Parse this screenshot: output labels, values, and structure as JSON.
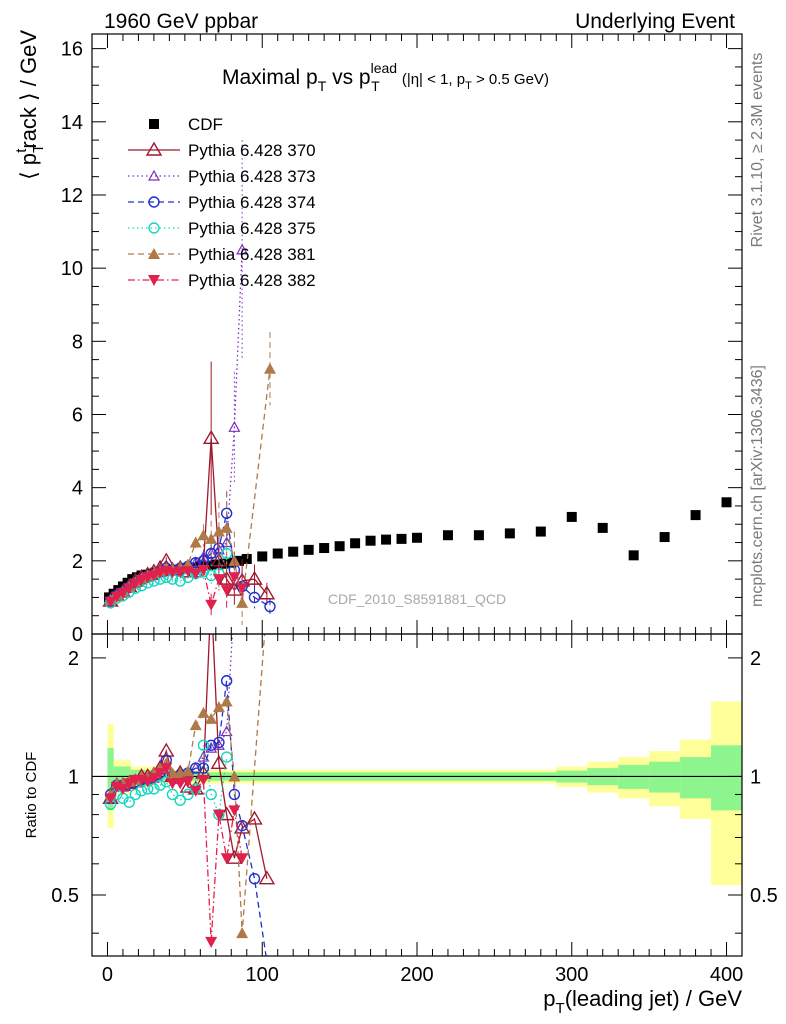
{
  "header": {
    "left": "1960 GeV ppbar",
    "right": "Underlying Event"
  },
  "side_labels": {
    "rivet": "Rivet 3.1.10, ≥ 2.3M events",
    "mcplots": "mcplots.cern.ch [arXiv:1306.3436]"
  },
  "watermark": "CDF_2010_S8591881_QCD",
  "chart_data": {
    "type": "scatter",
    "title": {
      "main": "Maximal p",
      "sub1": "T",
      "vs": " vs p",
      "sup": "lead",
      "sub2": "T",
      "tail1": " (|η| < 1, p",
      "sub3": "T",
      "tail2": " > 0.5 GeV)"
    },
    "ylabel": "⟨ p",
    "ylabel_sub": "T",
    "ylabel_sup": "t",
    "ylabel_tail": "rack ⟩ / GeV",
    "xlabel": "p",
    "xlabel_sub": "T",
    "xlabel_tail": "(leading jet) / GeV",
    "ratio_ylabel": "Ratio to CDF",
    "xlim": [
      -10,
      410
    ],
    "ylim": [
      0,
      16.4
    ],
    "ratio_ylim": [
      0.35,
      2.3
    ],
    "xticks": [
      0,
      100,
      200,
      300,
      400
    ],
    "xtick_labels": [
      "0",
      "100",
      "200",
      "300",
      "400"
    ],
    "yticks": [
      0,
      2,
      4,
      6,
      8,
      10,
      12,
      14,
      16
    ],
    "ytick_labels": [
      "0",
      "2",
      "4",
      "6",
      "8",
      "10",
      "12",
      "14",
      "16"
    ],
    "ratio_yticks": [
      0.5,
      1,
      2
    ],
    "ratio_ytick_labels": [
      "0.5",
      "1",
      "2"
    ],
    "legend_position": "top-left",
    "series": [
      {
        "name": "CDF",
        "style": "data",
        "color": "#000000",
        "x": [
          1,
          4,
          7,
          10,
          13,
          16,
          19,
          22,
          25,
          28,
          31,
          34,
          37,
          40,
          45,
          50,
          55,
          60,
          65,
          70,
          75,
          80,
          85,
          90,
          100,
          110,
          120,
          130,
          140,
          150,
          160,
          170,
          180,
          190,
          200,
          220,
          240,
          260,
          280,
          300,
          320,
          340,
          360,
          380,
          400
        ],
        "y": [
          1.0,
          1.1,
          1.2,
          1.3,
          1.4,
          1.5,
          1.55,
          1.6,
          1.62,
          1.65,
          1.68,
          1.7,
          1.72,
          1.74,
          1.76,
          1.8,
          1.82,
          1.85,
          1.87,
          1.9,
          1.92,
          1.95,
          2.0,
          2.05,
          2.12,
          2.2,
          2.25,
          2.3,
          2.35,
          2.4,
          2.48,
          2.55,
          2.58,
          2.6,
          2.63,
          2.7,
          2.7,
          2.75,
          2.8,
          3.2,
          2.9,
          2.15,
          2.65,
          3.25,
          3.6
        ]
      },
      {
        "name": "Pythia 6.428 370",
        "style": "solid",
        "marker": "triangle-open",
        "color": "#a0182e",
        "x": [
          2,
          6,
          10,
          14,
          18,
          22,
          26,
          30,
          34,
          38,
          42,
          47,
          52,
          57,
          62,
          67,
          72,
          77,
          82,
          87,
          95,
          103
        ],
        "y": [
          0.9,
          1.05,
          1.15,
          1.3,
          1.45,
          1.55,
          1.62,
          1.7,
          1.8,
          2.0,
          1.75,
          1.8,
          1.7,
          1.7,
          1.9,
          5.35,
          2.0,
          1.5,
          1.2,
          1.45,
          1.5,
          1.1
        ],
        "yerr": [
          0.05,
          0.05,
          0.05,
          0.06,
          0.06,
          0.06,
          0.07,
          0.07,
          0.08,
          0.1,
          0.1,
          0.12,
          0.15,
          0.2,
          0.3,
          2.1,
          0.5,
          0.5,
          0.4,
          0.6,
          0.4,
          0.3
        ],
        "ratio": [
          0.88,
          0.95,
          0.95,
          0.96,
          0.97,
          1.0,
          1.0,
          1.01,
          1.05,
          1.16,
          1.0,
          1.02,
          0.94,
          0.93,
          1.02,
          2.9,
          1.08,
          0.8,
          0.62,
          0.74,
          0.78,
          0.55
        ]
      },
      {
        "name": "Pythia 6.428 373",
        "style": "dotted",
        "marker": "triangle-open-small",
        "color": "#7b2fbe",
        "x": [
          2,
          6,
          10,
          14,
          18,
          22,
          26,
          30,
          34,
          38,
          42,
          47,
          52,
          57,
          62,
          67,
          72,
          77,
          82,
          87
        ],
        "y": [
          0.88,
          1.02,
          1.12,
          1.25,
          1.38,
          1.48,
          1.55,
          1.6,
          1.68,
          1.75,
          1.72,
          1.8,
          1.85,
          1.95,
          2.1,
          2.2,
          2.3,
          2.5,
          5.65,
          10.5
        ],
        "yerr": [
          0.04,
          0.04,
          0.05,
          0.05,
          0.05,
          0.06,
          0.06,
          0.07,
          0.07,
          0.08,
          0.09,
          0.1,
          0.12,
          0.15,
          0.2,
          0.3,
          0.4,
          0.6,
          1.5,
          3.0
        ],
        "ratio": [
          0.88,
          0.95,
          0.94,
          0.96,
          0.98,
          0.98,
          0.98,
          0.99,
          1.02,
          1.05,
          1.0,
          1.02,
          1.02,
          1.05,
          1.12,
          1.18,
          1.2,
          1.3,
          2.8,
          5.0
        ]
      },
      {
        "name": "Pythia 6.428 374",
        "style": "dashed",
        "marker": "circle-open",
        "color": "#1f2fd0",
        "x": [
          2,
          6,
          10,
          14,
          18,
          22,
          26,
          30,
          34,
          38,
          42,
          47,
          52,
          57,
          62,
          67,
          72,
          77,
          82,
          87,
          95,
          105
        ],
        "y": [
          0.9,
          1.05,
          1.15,
          1.28,
          1.4,
          1.5,
          1.58,
          1.62,
          1.7,
          1.8,
          1.75,
          1.8,
          1.85,
          1.95,
          2.0,
          2.2,
          2.35,
          3.3,
          1.75,
          1.3,
          1.0,
          0.75
        ],
        "yerr": [
          0.04,
          0.04,
          0.05,
          0.05,
          0.05,
          0.06,
          0.06,
          0.07,
          0.07,
          0.08,
          0.09,
          0.1,
          0.12,
          0.15,
          0.2,
          0.3,
          0.4,
          0.6,
          0.5,
          0.4,
          0.3,
          0.2
        ],
        "ratio": [
          0.9,
          0.95,
          0.95,
          0.96,
          0.97,
          0.98,
          0.98,
          1.0,
          1.02,
          1.1,
          1.0,
          1.01,
          1.02,
          1.05,
          1.05,
          1.2,
          1.22,
          1.75,
          0.9,
          0.75,
          0.55,
          0.3
        ]
      },
      {
        "name": "Pythia 6.428 375",
        "style": "dotted",
        "marker": "circle-open",
        "color": "#17d6c0",
        "x": [
          2,
          6,
          10,
          14,
          18,
          22,
          26,
          30,
          34,
          38,
          42,
          47,
          52,
          57,
          62,
          67,
          72,
          77
        ],
        "y": [
          0.85,
          0.98,
          1.05,
          1.15,
          1.25,
          1.32,
          1.4,
          1.45,
          1.5,
          1.55,
          1.5,
          1.45,
          1.55,
          1.65,
          1.7,
          1.6,
          1.65,
          2.2
        ],
        "yerr": [
          0.04,
          0.04,
          0.05,
          0.05,
          0.05,
          0.06,
          0.06,
          0.07,
          0.07,
          0.08,
          0.09,
          0.1,
          0.12,
          0.15,
          0.2,
          0.3,
          0.4,
          0.6
        ],
        "ratio": [
          0.85,
          0.9,
          0.88,
          0.86,
          0.9,
          0.92,
          0.93,
          0.93,
          0.95,
          0.97,
          0.9,
          0.87,
          0.9,
          0.93,
          1.2,
          0.9,
          0.8,
          1.12
        ]
      },
      {
        "name": "Pythia 6.428 381",
        "style": "dashed",
        "marker": "triangle-filled",
        "color": "#b07a48",
        "x": [
          2,
          6,
          10,
          14,
          18,
          22,
          26,
          30,
          34,
          38,
          42,
          47,
          52,
          57,
          62,
          67,
          72,
          77,
          82,
          87,
          105
        ],
        "y": [
          0.92,
          1.05,
          1.15,
          1.3,
          1.42,
          1.52,
          1.6,
          1.66,
          1.72,
          1.8,
          1.78,
          1.82,
          1.9,
          2.5,
          2.7,
          2.6,
          2.8,
          2.9,
          2.0,
          0.85,
          7.25
        ],
        "yerr": [
          0.04,
          0.04,
          0.05,
          0.05,
          0.05,
          0.06,
          0.06,
          0.07,
          0.07,
          0.08,
          0.09,
          0.1,
          0.12,
          0.15,
          0.3,
          0.5,
          0.8,
          1.0,
          0.8,
          0.6,
          1.0
        ],
        "ratio": [
          0.9,
          0.96,
          0.96,
          0.97,
          0.98,
          1.0,
          1.0,
          1.02,
          1.05,
          1.08,
          1.02,
          1.02,
          1.03,
          1.35,
          1.45,
          1.4,
          1.5,
          1.55,
          1.0,
          0.4,
          3.5
        ]
      },
      {
        "name": "Pythia 6.428 382",
        "style": "dashdot",
        "marker": "triangle-down-filled",
        "color": "#e0214d",
        "x": [
          2,
          6,
          10,
          14,
          18,
          22,
          26,
          30,
          34,
          38,
          42,
          47,
          52,
          57,
          62,
          67,
          72,
          77,
          82,
          87
        ],
        "y": [
          0.88,
          1.02,
          1.12,
          1.25,
          1.38,
          1.48,
          1.55,
          1.6,
          1.68,
          1.72,
          1.68,
          1.7,
          1.72,
          1.65,
          1.75,
          0.8,
          1.5,
          1.2,
          1.55,
          1.25
        ],
        "yerr": [
          0.04,
          0.04,
          0.05,
          0.05,
          0.05,
          0.06,
          0.06,
          0.07,
          0.07,
          0.08,
          0.09,
          0.1,
          0.12,
          0.15,
          0.2,
          0.3,
          0.4,
          0.5,
          0.5,
          0.4
        ],
        "ratio": [
          0.88,
          0.94,
          0.93,
          0.96,
          0.98,
          0.98,
          0.97,
          0.99,
          1.02,
          1.05,
          0.96,
          0.96,
          0.97,
          0.92,
          0.98,
          0.38,
          0.8,
          0.62,
          0.82,
          0.62
        ]
      }
    ],
    "cdf_band_inner": [
      {
        "x0": 0,
        "x1": 4,
        "lo": 0.82,
        "hi": 1.18
      },
      {
        "x0": 4,
        "x1": 15,
        "lo": 0.94,
        "hi": 1.06
      },
      {
        "x0": 15,
        "x1": 30,
        "lo": 0.96,
        "hi": 1.04
      },
      {
        "x0": 30,
        "x1": 290,
        "lo": 0.975,
        "hi": 1.025
      },
      {
        "x0": 290,
        "x1": 310,
        "lo": 0.965,
        "hi": 1.035
      },
      {
        "x0": 310,
        "x1": 330,
        "lo": 0.95,
        "hi": 1.05
      },
      {
        "x0": 330,
        "x1": 350,
        "lo": 0.93,
        "hi": 1.07
      },
      {
        "x0": 350,
        "x1": 370,
        "lo": 0.91,
        "hi": 1.09
      },
      {
        "x0": 370,
        "x1": 390,
        "lo": 0.88,
        "hi": 1.12
      },
      {
        "x0": 390,
        "x1": 410,
        "lo": 0.82,
        "hi": 1.2
      }
    ],
    "cdf_band_outer": [
      {
        "x0": 0,
        "x1": 4,
        "lo": 0.74,
        "hi": 1.36
      },
      {
        "x0": 4,
        "x1": 15,
        "lo": 0.9,
        "hi": 1.1
      },
      {
        "x0": 15,
        "x1": 30,
        "lo": 0.94,
        "hi": 1.06
      },
      {
        "x0": 30,
        "x1": 290,
        "lo": 0.96,
        "hi": 1.04
      },
      {
        "x0": 290,
        "x1": 310,
        "lo": 0.94,
        "hi": 1.06
      },
      {
        "x0": 310,
        "x1": 330,
        "lo": 0.91,
        "hi": 1.09
      },
      {
        "x0": 330,
        "x1": 350,
        "lo": 0.88,
        "hi": 1.12
      },
      {
        "x0": 350,
        "x1": 370,
        "lo": 0.84,
        "hi": 1.16
      },
      {
        "x0": 370,
        "x1": 390,
        "lo": 0.78,
        "hi": 1.24
      },
      {
        "x0": 390,
        "x1": 410,
        "lo": 0.53,
        "hi": 1.55
      }
    ],
    "band_colors": {
      "inner": "#8ef58e",
      "outer": "#ffff99"
    }
  }
}
